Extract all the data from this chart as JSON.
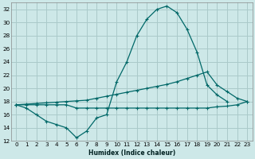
{
  "xlabel": "Humidex (Indice chaleur)",
  "background_color": "#cde8e8",
  "grid_color": "#aacaca",
  "line_color": "#006868",
  "xlim": [
    -0.5,
    23.5
  ],
  "ylim": [
    12,
    33
  ],
  "yticks": [
    12,
    14,
    16,
    18,
    20,
    22,
    24,
    26,
    28,
    30,
    32
  ],
  "xticks": [
    0,
    1,
    2,
    3,
    4,
    5,
    6,
    7,
    8,
    9,
    10,
    11,
    12,
    13,
    14,
    15,
    16,
    17,
    18,
    19,
    20,
    21,
    22,
    23
  ],
  "line1_x": [
    0,
    1,
    2,
    3,
    4,
    5,
    6,
    7,
    8,
    9,
    10,
    11,
    12,
    13,
    14,
    15,
    16,
    17,
    18,
    19,
    20,
    21
  ],
  "line1_y": [
    17.5,
    17.0,
    16.0,
    15.0,
    14.5,
    14.0,
    12.5,
    13.5,
    15.5,
    16.0,
    21.0,
    24.0,
    28.0,
    30.5,
    32.0,
    32.5,
    31.5,
    29.0,
    25.5,
    20.5,
    19.0,
    18.0
  ],
  "line2_x": [
    0,
    1,
    2,
    3,
    4,
    5,
    6,
    7,
    8,
    9,
    10,
    11,
    12,
    13,
    14,
    15,
    16,
    17,
    18,
    19,
    20,
    21,
    22,
    23
  ],
  "line2_y": [
    17.5,
    17.6,
    17.7,
    17.8,
    17.9,
    18.0,
    18.1,
    18.2,
    18.5,
    18.8,
    19.1,
    19.4,
    19.7,
    20.0,
    20.3,
    20.6,
    21.0,
    21.5,
    22.0,
    22.5,
    20.5,
    19.5,
    18.5,
    18.0
  ],
  "line3_x": [
    0,
    1,
    2,
    3,
    4,
    5,
    6,
    7,
    8,
    9,
    10,
    11,
    12,
    13,
    14,
    15,
    16,
    17,
    18,
    19,
    20,
    21,
    22,
    23
  ],
  "line3_y": [
    17.5,
    17.5,
    17.5,
    17.5,
    17.5,
    17.5,
    17.0,
    17.0,
    17.0,
    17.0,
    17.0,
    17.0,
    17.0,
    17.0,
    17.0,
    17.0,
    17.0,
    17.0,
    17.0,
    17.0,
    17.2,
    17.3,
    17.5,
    18.0
  ]
}
